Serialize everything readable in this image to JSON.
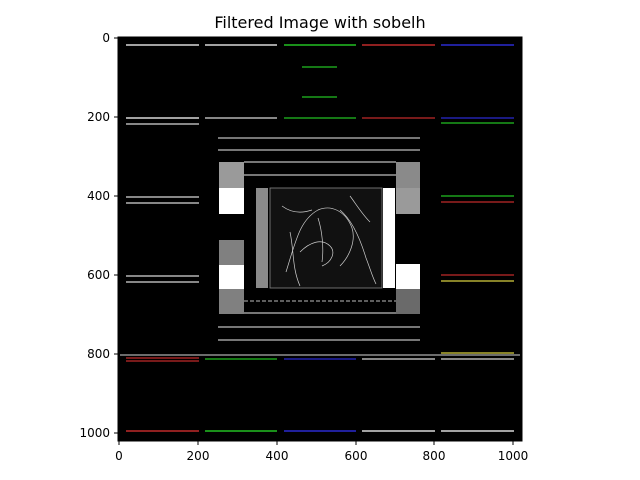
{
  "figure": {
    "title": "Filtered Image with sobelh"
  },
  "axes": {
    "x_ticks": [
      "0",
      "200",
      "400",
      "600",
      "800",
      "1000"
    ],
    "y_ticks": [
      "0",
      "200",
      "400",
      "600",
      "800",
      "1000"
    ]
  },
  "colors": {
    "background": "#000000",
    "white_line": "#d8d8d8",
    "green_line": "#22c022",
    "red_line": "#c02a2a",
    "blue_line": "#2a2ad0",
    "yellow_line": "#d8d040",
    "gray_patch": "#808080"
  }
}
